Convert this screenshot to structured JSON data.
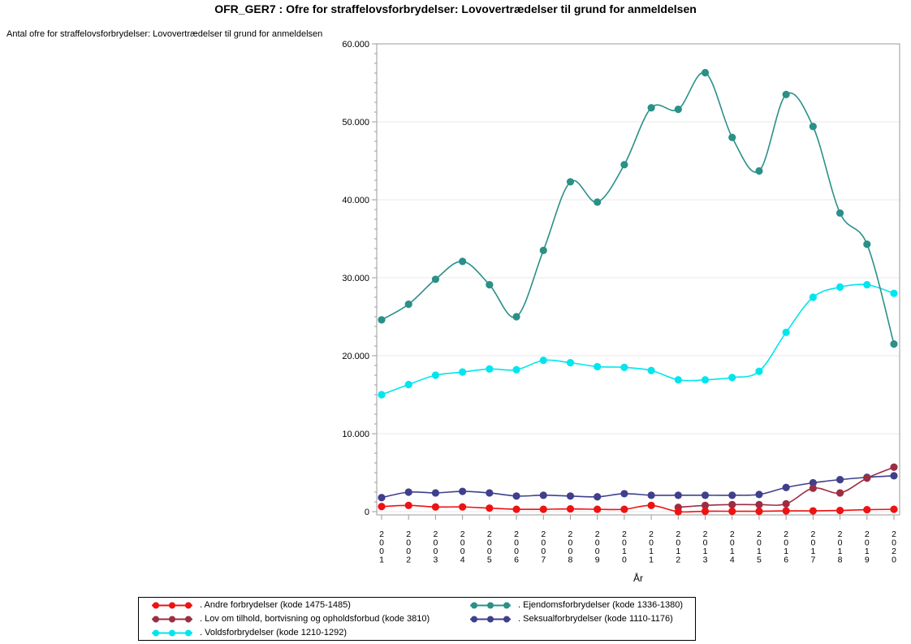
{
  "title": "OFR_GER7 : Ofre for straffelovsforbrydelser: Lovovertrædelser til grund for anmeldelsen",
  "y_axis_title": "Antal ofre for straffelovsforbrydelser: Lovovertrædelser til grund for anmeldelsen",
  "colors": {
    "axis": "#9B9B9B",
    "grid": "#E9E9E9",
    "text": "#000000",
    "background": "#FFFFFF",
    "legend_border": "#000000"
  },
  "chart_data": {
    "type": "line",
    "interpolation": "spline",
    "title": "OFR_GER7 : Ofre for straffelovsforbrydelser: Lovovertrædelser til grund for anmeldelsen",
    "xlabel": "År",
    "ylabel": "Antal ofre for straffelovsforbrydelser: Lovovertrædelser til grund for anmeldelsen",
    "x": [
      2001,
      2002,
      2003,
      2004,
      2005,
      2006,
      2007,
      2008,
      2009,
      2010,
      2011,
      2012,
      2013,
      2014,
      2015,
      2016,
      2017,
      2018,
      2019,
      2020
    ],
    "ylim": [
      0,
      60000
    ],
    "ytick_step": 10000,
    "ytick_minor_step": 1250,
    "ytick_labels": [
      "0",
      "10.000",
      "20.000",
      "30.000",
      "40.000",
      "50.000",
      "60.000"
    ],
    "grid": "horizontal-major",
    "legend_position": "bottom",
    "series": [
      {
        "id": "andre",
        "name": ". Andre forbrydelser (kode 1475-1485)",
        "color": "#EE1212",
        "values": [
          650,
          800,
          600,
          600,
          450,
          300,
          300,
          350,
          300,
          300,
          800,
          0,
          50,
          50,
          50,
          100,
          100,
          150,
          250,
          300
        ]
      },
      {
        "id": "ejendoms",
        "name": ". Ejendomsforbrydelser (kode 1336-1380)",
        "color": "#2A9088",
        "values": [
          24600,
          26600,
          29800,
          32100,
          29100,
          25000,
          33500,
          42300,
          39700,
          44500,
          51800,
          51600,
          56300,
          48000,
          43700,
          53500,
          49400,
          38300,
          34300,
          21500
        ]
      },
      {
        "id": "lov",
        "name": ". Lov om tilhold, bortvisning og opholdsforbud (kode 3810)",
        "color": "#9C2D42",
        "values": [
          null,
          null,
          null,
          null,
          null,
          null,
          null,
          null,
          null,
          null,
          null,
          550,
          800,
          900,
          900,
          1000,
          3000,
          2400,
          4300,
          5700
        ]
      },
      {
        "id": "seksual",
        "name": ". Seksualforbrydelser (kode 1110-1176)",
        "color": "#3F3F8C",
        "values": [
          1800,
          2500,
          2400,
          2600,
          2400,
          2000,
          2100,
          2000,
          1900,
          2300,
          2100,
          2100,
          2100,
          2100,
          2200,
          3100,
          3700,
          4100,
          4400,
          4600
        ]
      },
      {
        "id": "volds",
        "name": ". Voldsforbrydelser (kode 1210-1292)",
        "color": "#00E5EE",
        "values": [
          15000,
          16300,
          17500,
          17900,
          18300,
          18200,
          19400,
          19100,
          18600,
          18500,
          18100,
          16900,
          16900,
          17200,
          18000,
          23000,
          27500,
          28800,
          29100,
          28000
        ]
      }
    ]
  },
  "legend": {
    "items": [
      {
        "label": ". Andre forbrydelser (kode 1475-1485)",
        "color": "#EE1212"
      },
      {
        "label": ". Ejendomsforbrydelser (kode 1336-1380)",
        "color": "#2A9088"
      },
      {
        "label": ". Lov om tilhold, bortvisning og opholdsforbud (kode 3810)",
        "color": "#9C2D42"
      },
      {
        "label": ". Seksualforbrydelser (kode 1110-1176)",
        "color": "#3F3F8C"
      },
      {
        "label": ". Voldsforbrydelser (kode 1210-1292)",
        "color": "#00E5EE"
      }
    ]
  }
}
